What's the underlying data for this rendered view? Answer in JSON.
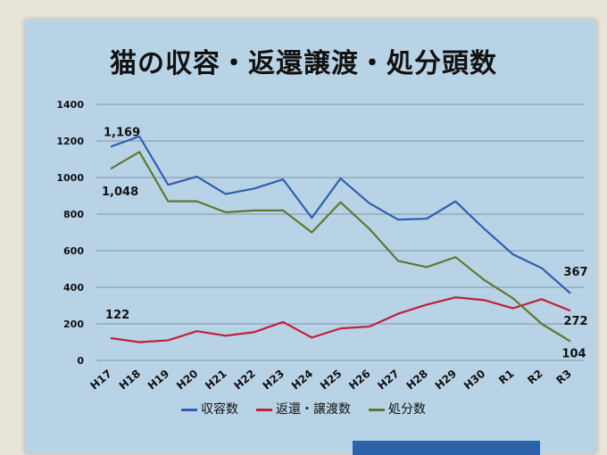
{
  "chart_data": {
    "type": "line",
    "title": "猫の収容・返還譲渡・処分頭数",
    "categories": [
      "H17",
      "H18",
      "H19",
      "H20",
      "H21",
      "H22",
      "H23",
      "H24",
      "H25",
      "H26",
      "H27",
      "H28",
      "H29",
      "H30",
      "R1",
      "R2",
      "R3"
    ],
    "ylim": [
      0,
      1400
    ],
    "yticks": [
      "0",
      "200",
      "400",
      "600",
      "800",
      "1000",
      "1200",
      "1400"
    ],
    "grid": true,
    "legend_position": "bottom",
    "series": [
      {
        "name": "収容数",
        "color": "#2f5fb3",
        "values": [
          1169,
          1225,
          960,
          1005,
          910,
          940,
          990,
          780,
          995,
          860,
          770,
          775,
          870,
          720,
          580,
          505,
          367
        ]
      },
      {
        "name": "返還・譲渡数",
        "color": "#c0203a",
        "values": [
          122,
          100,
          110,
          160,
          135,
          155,
          210,
          125,
          175,
          185,
          255,
          305,
          345,
          330,
          285,
          335,
          272
        ]
      },
      {
        "name": "処分数",
        "color": "#5c7a2e",
        "values": [
          1048,
          1140,
          870,
          870,
          810,
          820,
          820,
          700,
          865,
          720,
          545,
          510,
          565,
          440,
          340,
          200,
          104
        ]
      }
    ],
    "annotations": [
      "1,169",
      "1,048",
      "122",
      "367",
      "272",
      "104"
    ]
  }
}
